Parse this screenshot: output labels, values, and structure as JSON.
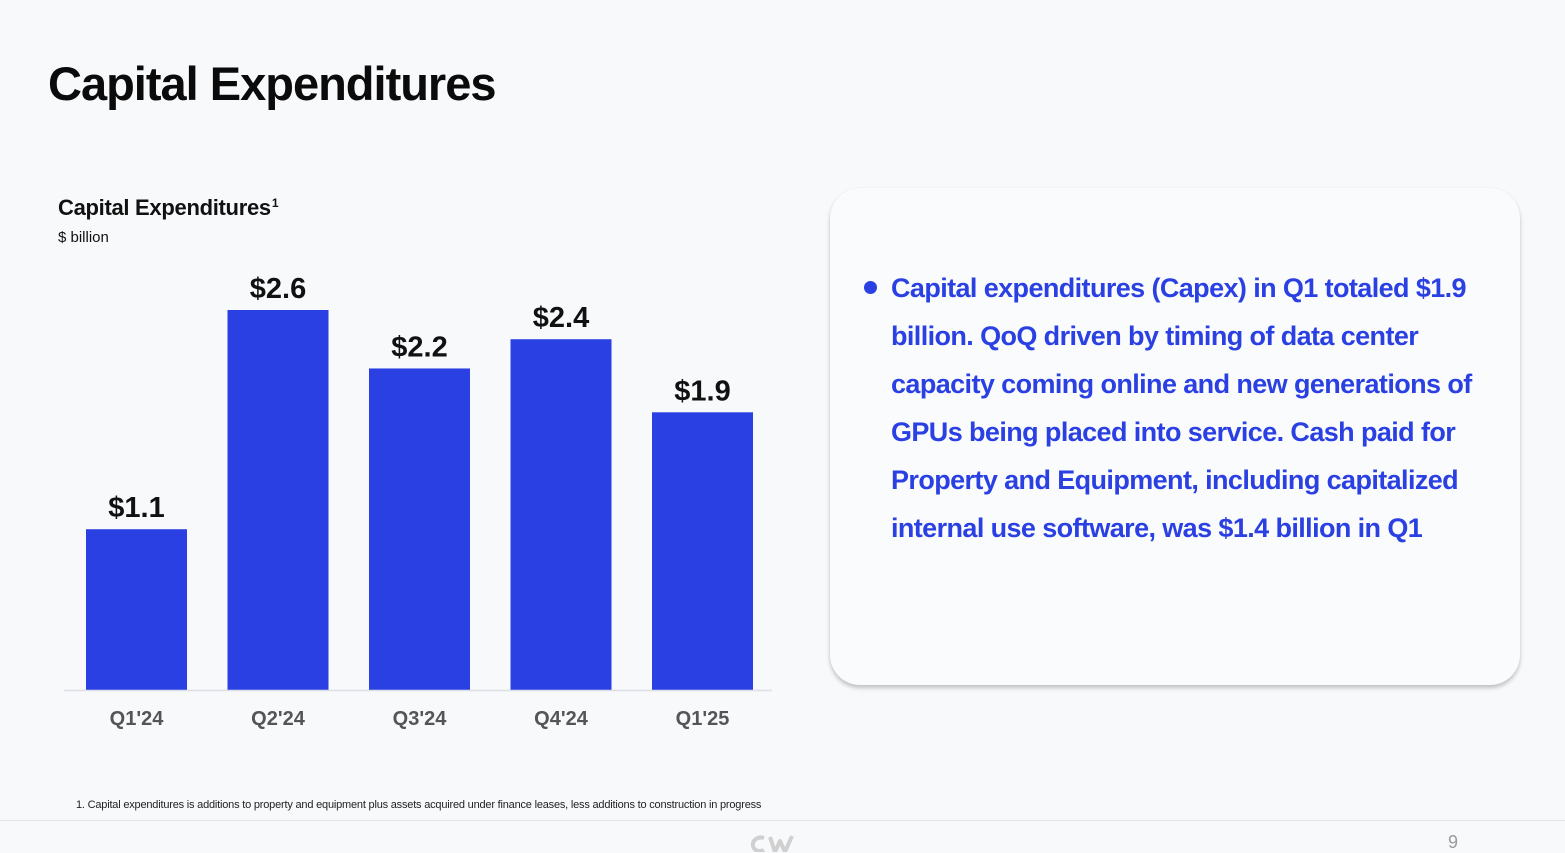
{
  "page": {
    "title": "Capital Expenditures",
    "page_number": "9"
  },
  "chart_data": {
    "type": "bar",
    "title": "Capital Expenditures",
    "title_superscript": "1",
    "subtitle": "$ billion",
    "categories": [
      "Q1'24",
      "Q2'24",
      "Q3'24",
      "Q4'24",
      "Q1'25"
    ],
    "values": [
      1.1,
      2.6,
      2.2,
      2.4,
      1.9
    ],
    "data_labels": [
      "$1.1",
      "$2.6",
      "$2.2",
      "$2.4",
      "$1.9"
    ],
    "xlabel": "",
    "ylabel": "",
    "ylim": [
      0,
      2.6
    ],
    "grid": false,
    "legend": "none",
    "bar_color": "#2a40e3"
  },
  "callout": {
    "text": "Capital expenditures (Capex) in Q1 totaled $1.9 billion. QoQ driven by timing of data center capacity coming online and new generations of GPUs being placed into service. Cash paid for Property and Equipment, including capitalized internal use software, was $1.4 billion in Q1",
    "color": "#2a40e3"
  },
  "footnote": "1. Capital expenditures is additions to property and equipment plus assets acquired under finance leases, less additions to construction in progress",
  "logo": {
    "icon": "company-logo-icon"
  }
}
